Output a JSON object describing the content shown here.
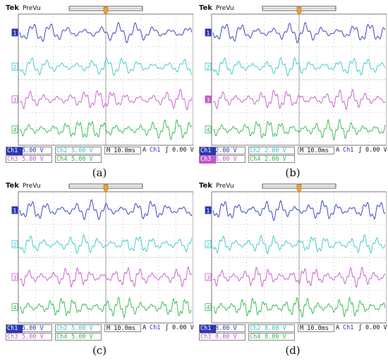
{
  "panels": [
    {
      "caption": "(a)",
      "brand": "Tek",
      "mode": "PreVu",
      "channels": [
        {
          "label": "1",
          "marker": "1",
          "scale": "5.00 V",
          "color": "#2a35b8",
          "highlight": true
        },
        {
          "label": "2",
          "marker": "2",
          "scale": "5.00 V",
          "color": "#33c6cf",
          "highlight": false
        },
        {
          "label": "3",
          "marker": "3",
          "scale": "5.00 V",
          "color": "#c655cc",
          "highlight": false
        },
        {
          "label": "4",
          "marker": "4",
          "scale": "5.00 V",
          "color": "#2fb84a",
          "highlight": false
        }
      ],
      "ch_names": [
        "Ch1",
        "Ch2",
        "Ch3",
        "Ch4"
      ],
      "timebase": "M 10.0ms",
      "trigger_mode": "A",
      "trigger_src": "Ch1",
      "trigger_slope": "ʃ",
      "trigger_level": "0.00 V"
    },
    {
      "caption": "(b)",
      "brand": "Tek",
      "mode": "PreVu",
      "channels": [
        {
          "label": "1",
          "marker": "1",
          "scale": "2.00 V",
          "color": "#2a35b8",
          "highlight": true
        },
        {
          "label": "2",
          "marker": "2",
          "scale": "2.00 V",
          "color": "#33c6cf",
          "highlight": false
        },
        {
          "label": "3",
          "marker": "3",
          "scale": "6.00 V",
          "color": "#c655cc",
          "highlight": true
        },
        {
          "label": "4",
          "marker": "4",
          "scale": "2.00 V",
          "color": "#2fb84a",
          "highlight": false
        }
      ],
      "ch_names": [
        "Ch1",
        "Ch2",
        "Ch3",
        "Ch4"
      ],
      "timebase": "M 10.0ms",
      "trigger_mode": "A",
      "trigger_src": "Ch1",
      "trigger_slope": "ʃ",
      "trigger_level": "0.00 V"
    },
    {
      "caption": "(c)",
      "brand": "Tek",
      "mode": "PreVu",
      "channels": [
        {
          "label": "1",
          "marker": "1",
          "scale": "5.00 V",
          "color": "#2a35b8",
          "highlight": true
        },
        {
          "label": "2",
          "marker": "2",
          "scale": "5.00 V",
          "color": "#33c6cf",
          "highlight": false
        },
        {
          "label": "3",
          "marker": "3",
          "scale": "5.00 V",
          "color": "#c655cc",
          "highlight": false
        },
        {
          "label": "4",
          "marker": "4",
          "scale": "5.00 V",
          "color": "#2fb84a",
          "highlight": false
        }
      ],
      "ch_names": [
        "Ch1",
        "Ch2",
        "Ch3",
        "Ch4"
      ],
      "timebase": "M 10.0ms",
      "trigger_mode": "A",
      "trigger_src": "Ch1",
      "trigger_slope": "ʃ",
      "trigger_level": "0.00 V"
    },
    {
      "caption": "(d)",
      "brand": "Tek",
      "mode": "PreVu",
      "channels": [
        {
          "label": "1",
          "marker": "1",
          "scale": "8.00 V",
          "color": "#2a35b8",
          "highlight": true
        },
        {
          "label": "2",
          "marker": "2",
          "scale": "8.00 V",
          "color": "#33c6cf",
          "highlight": false
        },
        {
          "label": "3",
          "marker": "3",
          "scale": "8.00 V",
          "color": "#c655cc",
          "highlight": false
        },
        {
          "label": "4",
          "marker": "4",
          "scale": "8.00 V",
          "color": "#2fb84a",
          "highlight": false
        }
      ],
      "ch_names": [
        "Ch1",
        "Ch2",
        "Ch3",
        "Ch4"
      ],
      "timebase": "M 10.0ms",
      "trigger_mode": "A",
      "trigger_src": "Ch1",
      "trigger_slope": "ʃ",
      "trigger_level": "0.00 V"
    }
  ],
  "colors": {
    "grid": "#9a9a9a",
    "trigger_marker": "#e8a030",
    "panel_frame": "#555555"
  }
}
